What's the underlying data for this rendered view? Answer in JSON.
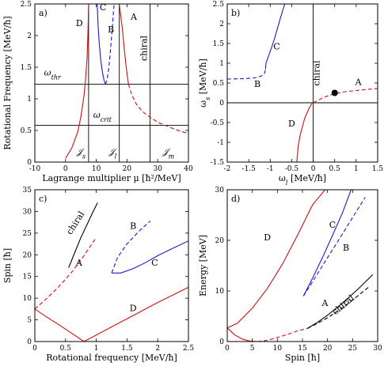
{
  "figure": {
    "title": ""
  },
  "colors": {
    "red": "#cc1111",
    "blue": "#1a1acc",
    "black": "#000000"
  },
  "chart_data": [
    {
      "panel": "a)",
      "type": "line",
      "xlabel": "Lagrange multiplier μ [ħ²/MeV]",
      "ylabel": "Rotational Frequency [MeV/ħ]",
      "xlim": [
        -10,
        40
      ],
      "ylim": [
        0,
        2.5
      ],
      "xticks": [
        -10,
        0,
        10,
        20,
        30,
        40
      ],
      "yticks": [
        0,
        0.5,
        1,
        1.5,
        2,
        2.5
      ],
      "ytick_labels": [
        "0",
        "0.5",
        "1",
        "1.5",
        "2",
        "2.5"
      ],
      "hlines": [
        {
          "y": 1.23,
          "label": "ω_thr",
          "label_x": -7,
          "label_y": 1.37
        },
        {
          "y": 0.58,
          "label": "ω_crit",
          "label_x": 9,
          "label_y": 0.7
        }
      ],
      "vlines": [
        {
          "x": 7.5,
          "label": "𝒥_s",
          "label_x": 3.5,
          "label_y": 0.12
        },
        {
          "x": 17.5,
          "label": "𝒥_l",
          "label_x": 14,
          "label_y": 0.12
        },
        {
          "x": 27.5,
          "label": "𝒥_m",
          "label_x": 31.5,
          "label_y": 0.12
        }
      ],
      "series": [
        {
          "label_id": "D",
          "color": "red",
          "dash": false,
          "x": [
            0,
            2,
            4,
            5,
            6,
            6.5,
            7,
            7.3,
            7.5
          ],
          "y": [
            0.06,
            0.22,
            0.48,
            0.72,
            1.05,
            1.3,
            1.65,
            2.05,
            2.5
          ]
        },
        {
          "label_id": "C",
          "color": "blue",
          "dash": false,
          "x": [
            10.3,
            10.6,
            11,
            11.5,
            12,
            12.5,
            13
          ],
          "y": [
            2.5,
            2.15,
            1.85,
            1.6,
            1.42,
            1.3,
            1.23
          ]
        },
        {
          "label_id": "B",
          "color": "blue",
          "dash": true,
          "x": [
            13,
            13.5,
            14,
            14.5,
            15,
            15.4,
            15.8
          ],
          "y": [
            1.23,
            1.3,
            1.45,
            1.7,
            2.0,
            2.25,
            2.5
          ]
        },
        {
          "label_id": "A-upper",
          "color": "red",
          "dash": false,
          "x": [
            17.5,
            18.5,
            19,
            19.5,
            20,
            20.5
          ],
          "y": [
            2.5,
            2.1,
            1.85,
            1.6,
            1.4,
            1.23
          ]
        },
        {
          "label_id": "A-lower",
          "color": "red",
          "dash": true,
          "x": [
            20.5,
            21.5,
            23,
            25,
            27.5,
            30,
            33,
            36,
            40
          ],
          "y": [
            1.23,
            1.07,
            0.92,
            0.8,
            0.71,
            0.63,
            0.57,
            0.51,
            0.45
          ]
        }
      ],
      "annotations": [
        {
          "text": "D",
          "x": 4.5,
          "y": 2.15
        },
        {
          "text": "C",
          "x": 12.2,
          "y": 2.4
        },
        {
          "text": "B",
          "x": 14.8,
          "y": 2.05
        },
        {
          "text": "A",
          "x": 22.2,
          "y": 2.25
        },
        {
          "text": "chiral",
          "x": 26.5,
          "y": 1.8,
          "rotate": -90
        }
      ]
    },
    {
      "panel": "b)",
      "type": "line",
      "xlabel": "ω_l [MeV/ħ]",
      "ylabel": "ω_s [MeV/ħ]",
      "xlim": [
        -2,
        1.5
      ],
      "ylim": [
        -1.5,
        2.5
      ],
      "xticks": [
        -2,
        -1.5,
        -1,
        -0.5,
        0,
        0.5,
        1,
        1.5
      ],
      "xtick_labels": [
        "-2",
        "-1.5",
        "-1",
        "-0.5",
        "0",
        "0.5",
        "1",
        "1.5"
      ],
      "yticks": [
        -1.5,
        -1,
        -0.5,
        0,
        0.5,
        1,
        1.5,
        2,
        2.5
      ],
      "ytick_labels": [
        "-1.5",
        "-1",
        "-0.5",
        "0",
        "0.5",
        "1",
        "1.5",
        "2",
        "2.5"
      ],
      "hlines": [
        {
          "y": 0
        }
      ],
      "vlines": [
        {
          "x": 0
        }
      ],
      "points": [
        {
          "x": 0.5,
          "y": 0.25
        }
      ],
      "series": [
        {
          "label_id": "C",
          "color": "blue",
          "dash": false,
          "x": [
            -1.11,
            -1.1,
            -1.0,
            -0.9,
            -0.8,
            -0.72,
            -0.66
          ],
          "y": [
            0.85,
            1.0,
            1.3,
            1.62,
            2.0,
            2.3,
            2.5
          ]
        },
        {
          "label_id": "B",
          "color": "blue",
          "dash": true,
          "x": [
            -2,
            -1.6,
            -1.35,
            -1.2,
            -1.13,
            -1.11
          ],
          "y": [
            0.6,
            0.61,
            0.63,
            0.68,
            0.75,
            0.85
          ]
        },
        {
          "label_id": "A",
          "color": "red",
          "dash": true,
          "x": [
            0,
            0.25,
            0.5,
            0.75,
            1.0,
            1.25,
            1.5
          ],
          "y": [
            0,
            0.14,
            0.23,
            0.28,
            0.31,
            0.34,
            0.36
          ]
        },
        {
          "label_id": "D",
          "color": "red",
          "dash": false,
          "x": [
            -0.02,
            -0.1,
            -0.2,
            -0.3,
            -0.35,
            -0.38
          ],
          "y": [
            0,
            -0.15,
            -0.4,
            -0.8,
            -1.1,
            -1.5
          ]
        }
      ],
      "annotations": [
        {
          "text": "C",
          "x": -0.85,
          "y": 1.35
        },
        {
          "text": "B",
          "x": -1.3,
          "y": 0.4
        },
        {
          "text": "A",
          "x": 1.05,
          "y": 0.45
        },
        {
          "text": "D",
          "x": -0.5,
          "y": -0.6
        },
        {
          "text": "chiral",
          "x": 0.15,
          "y": 0.75,
          "rotate": -90
        }
      ]
    },
    {
      "panel": "c)",
      "type": "line",
      "xlabel": "Rotational frequency [MeV/ħ]",
      "ylabel": "Spin [ħ]",
      "xlim": [
        0,
        2.5
      ],
      "ylim": [
        0,
        35
      ],
      "xticks": [
        0,
        0.5,
        1,
        1.5,
        2,
        2.5
      ],
      "xtick_labels": [
        "0",
        "0.5",
        "1",
        "1.5",
        "2",
        "2.5"
      ],
      "yticks": [
        0,
        5,
        10,
        15,
        20,
        25,
        30,
        35
      ],
      "ytick_labels": [
        "0",
        "5",
        "10",
        "15",
        "20",
        "25",
        "30",
        "35"
      ],
      "series": [
        {
          "label_id": "D-left",
          "color": "red",
          "dash": false,
          "x": [
            0,
            0.2,
            0.4,
            0.6,
            0.8
          ],
          "y": [
            7.5,
            5.6,
            3.8,
            1.9,
            0
          ]
        },
        {
          "label_id": "D-right",
          "color": "red",
          "dash": false,
          "x": [
            0.8,
            1.2,
            1.6,
            2.0,
            2.5
          ],
          "y": [
            0,
            3.0,
            6.0,
            9.0,
            12.5
          ]
        },
        {
          "label_id": "red-dash",
          "color": "red",
          "dash": true,
          "x": [
            0,
            0.2,
            0.4,
            0.6,
            0.8,
            1.0
          ],
          "y": [
            7.5,
            10.0,
            12.8,
            16.0,
            19.8,
            24.0
          ]
        },
        {
          "label_id": "chiral",
          "color": "black",
          "dash": false,
          "x": [
            0.55,
            0.65,
            0.75,
            0.85,
            0.95,
            1.02
          ],
          "y": [
            17.0,
            20.5,
            24.0,
            27.0,
            30.0,
            32.0
          ]
        },
        {
          "label_id": "B",
          "color": "blue",
          "dash": true,
          "x": [
            1.25,
            1.35,
            1.5,
            1.7,
            1.88
          ],
          "y": [
            15.8,
            19.5,
            22.5,
            25.5,
            27.8
          ]
        },
        {
          "label_id": "C",
          "color": "blue",
          "dash": false,
          "x": [
            1.25,
            1.4,
            1.6,
            1.8,
            2.0,
            2.2,
            2.5
          ],
          "y": [
            15.8,
            15.8,
            16.8,
            18.2,
            19.8,
            21.2,
            23.2
          ]
        }
      ],
      "annotations": [
        {
          "text": "chiral",
          "x": 0.7,
          "y": 27.0,
          "rotate": -58
        },
        {
          "text": "A",
          "x": 0.72,
          "y": 17.5
        },
        {
          "text": "B",
          "x": 1.6,
          "y": 26.0
        },
        {
          "text": "C",
          "x": 1.95,
          "y": 17.5
        },
        {
          "text": "D",
          "x": 1.6,
          "y": 7.0
        }
      ]
    },
    {
      "panel": "d)",
      "type": "line",
      "xlabel": "Spin [ħ]",
      "ylabel": "Energy [MeV]",
      "xlim": [
        0,
        30
      ],
      "ylim": [
        0,
        30
      ],
      "xticks": [
        0,
        5,
        10,
        15,
        20,
        25,
        30
      ],
      "xtick_labels": [
        "0",
        "5",
        "10",
        "15",
        "20",
        "25",
        "30"
      ],
      "yticks": [
        0,
        10,
        20,
        30
      ],
      "ytick_labels": [
        "0",
        "10",
        "20",
        "30"
      ],
      "series": [
        {
          "label_id": "D",
          "color": "red",
          "dash": false,
          "x": [
            0,
            2,
            5,
            8,
            11,
            14,
            17,
            19.5
          ],
          "y": [
            2.7,
            3.6,
            6.6,
            10.5,
            15.3,
            21.0,
            27.0,
            30.0
          ]
        },
        {
          "label_id": "red-lower",
          "color": "red",
          "dash": false,
          "x": [
            0,
            1.5,
            3,
            4.5,
            6
          ],
          "y": [
            2.7,
            1.3,
            0.5,
            0.1,
            0
          ]
        },
        {
          "label_id": "red-lower-dash",
          "color": "red",
          "dash": true,
          "x": [
            6,
            8,
            10,
            12,
            14,
            16
          ],
          "y": [
            0,
            0.25,
            0.8,
            1.4,
            2.1,
            2.6
          ]
        },
        {
          "label_id": "A",
          "color": "black",
          "dash": true,
          "x": [
            16,
            18,
            20,
            22,
            24,
            26,
            28.5
          ],
          "y": [
            2.6,
            3.6,
            4.7,
            6.0,
            7.4,
            9.0,
            11.0
          ]
        },
        {
          "label_id": "chiral",
          "color": "black",
          "dash": false,
          "x": [
            16,
            18,
            20,
            22,
            24,
            26,
            29
          ],
          "y": [
            2.6,
            3.8,
            5.2,
            6.8,
            8.5,
            10.3,
            13.2
          ]
        },
        {
          "label_id": "C",
          "color": "blue",
          "dash": false,
          "x": [
            15.2,
            17,
            19,
            21,
            23,
            24.7
          ],
          "y": [
            9.0,
            12.5,
            16.6,
            21.0,
            25.5,
            30.0
          ]
        },
        {
          "label_id": "B",
          "color": "blue",
          "dash": true,
          "x": [
            15.2,
            17,
            19,
            22,
            25,
            27.5
          ],
          "y": [
            9.0,
            11.8,
            15.0,
            19.7,
            24.5,
            28.5
          ]
        }
      ],
      "annotations": [
        {
          "text": "D",
          "x": 8.0,
          "y": 20.0
        },
        {
          "text": "C",
          "x": 21.0,
          "y": 22.5
        },
        {
          "text": "B",
          "x": 23.7,
          "y": 18.0
        },
        {
          "text": "A",
          "x": 19.5,
          "y": 7.0
        },
        {
          "text": "chiral",
          "x": 23.5,
          "y": 6.8,
          "rotate": -40
        }
      ]
    }
  ]
}
